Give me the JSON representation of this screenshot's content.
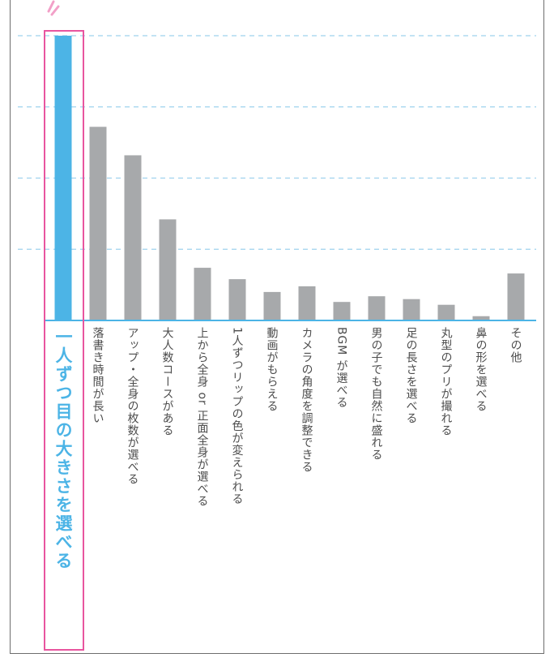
{
  "side_note": "",
  "colors": {
    "highlight": "#4cb4e6",
    "bar": "#a7a9ab",
    "axis": "#4cb4e6",
    "grid": "#9fd2ee",
    "box": "#e8559f"
  },
  "chart_data": {
    "type": "bar",
    "orientation": "vertical",
    "categories": [
      "一人ずつ目の大きさを選べる",
      "落書き時間が長い",
      "アップ・全身の枚数が選べる",
      "大人数コースがある",
      "上から全身 or 正面全身が選べる",
      "1人ずつリップの色が変えられる",
      "動画がもらえる",
      "カメラの角度を調整できる",
      "BGM が選べる",
      "男の子でも自然に盛れる",
      "足の長さを選べる",
      "丸型のプリが撮れる",
      "鼻の形を選べる",
      "その他"
    ],
    "values": [
      100,
      68,
      58,
      35.5,
      18.5,
      14.5,
      10,
      12,
      6.5,
      8.5,
      7.5,
      5.5,
      1.5,
      16.5
    ],
    "highlight_index": 0,
    "ylim": [
      0,
      100
    ],
    "grid": true,
    "title": "",
    "xlabel": "",
    "ylabel": ""
  }
}
